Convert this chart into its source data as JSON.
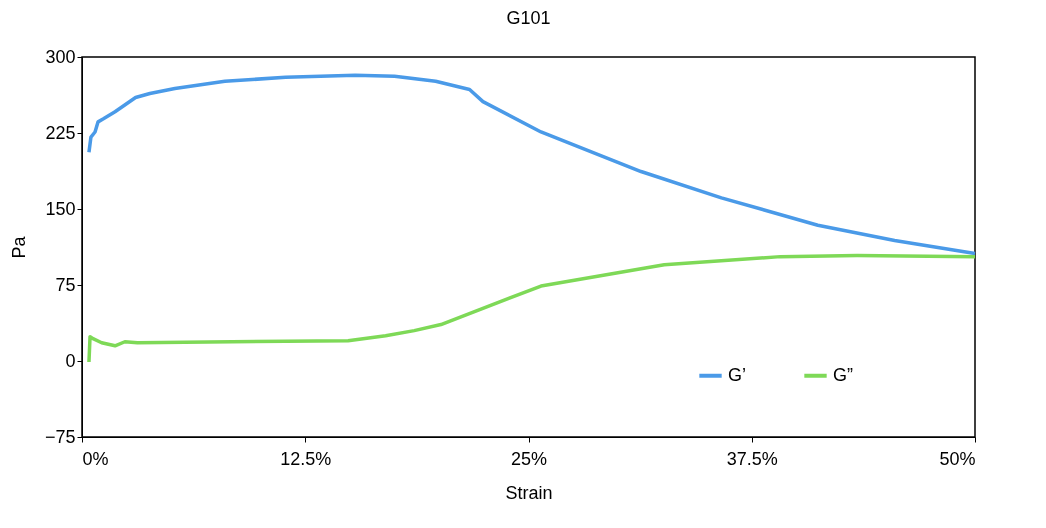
{
  "chart_data": {
    "type": "line",
    "title": "G101",
    "xlabel": "Strain",
    "ylabel": "Pa",
    "xlim": [
      0,
      50
    ],
    "ylim": [
      -75,
      300
    ],
    "xticks": [
      {
        "value": 0,
        "label": "0%"
      },
      {
        "value": 12.5,
        "label": "12.5%"
      },
      {
        "value": 25,
        "label": "25%"
      },
      {
        "value": 37.5,
        "label": "37.5%"
      },
      {
        "value": 50,
        "label": "50%"
      }
    ],
    "yticks": [
      -75,
      0,
      75,
      150,
      225,
      300
    ],
    "grid": false,
    "legend": "bottom right",
    "marker": "none",
    "line_style": "solid",
    "series": [
      {
        "name": "G’",
        "color": "#4a9ae8",
        "x": [
          0.39,
          0.5,
          0.73,
          0.9,
          1.2,
          1.85,
          3.0,
          3.8,
          5.2,
          8.0,
          11.4,
          15.3,
          17.5,
          19.8,
          21.7,
          22.45,
          25.7,
          31.3,
          35.8,
          41.2,
          45.5,
          50
        ],
        "values": [
          206,
          221,
          226,
          236,
          239,
          246,
          260,
          264,
          269,
          276,
          280,
          282,
          281,
          276,
          268,
          256,
          226,
          187,
          161,
          134,
          119,
          106
        ]
      },
      {
        "name": "G”",
        "color": "#7ed957",
        "x": [
          0.39,
          0.45,
          0.62,
          1.1,
          1.85,
          2.4,
          3.1,
          8.4,
          14.9,
          17.0,
          18.6,
          20.1,
          25.7,
          32.6,
          39.1,
          43.4,
          50
        ],
        "values": [
          -1,
          24,
          22,
          18,
          15,
          19,
          18,
          19,
          20,
          25,
          30,
          36,
          74,
          95,
          103,
          104,
          103
        ]
      }
    ]
  }
}
